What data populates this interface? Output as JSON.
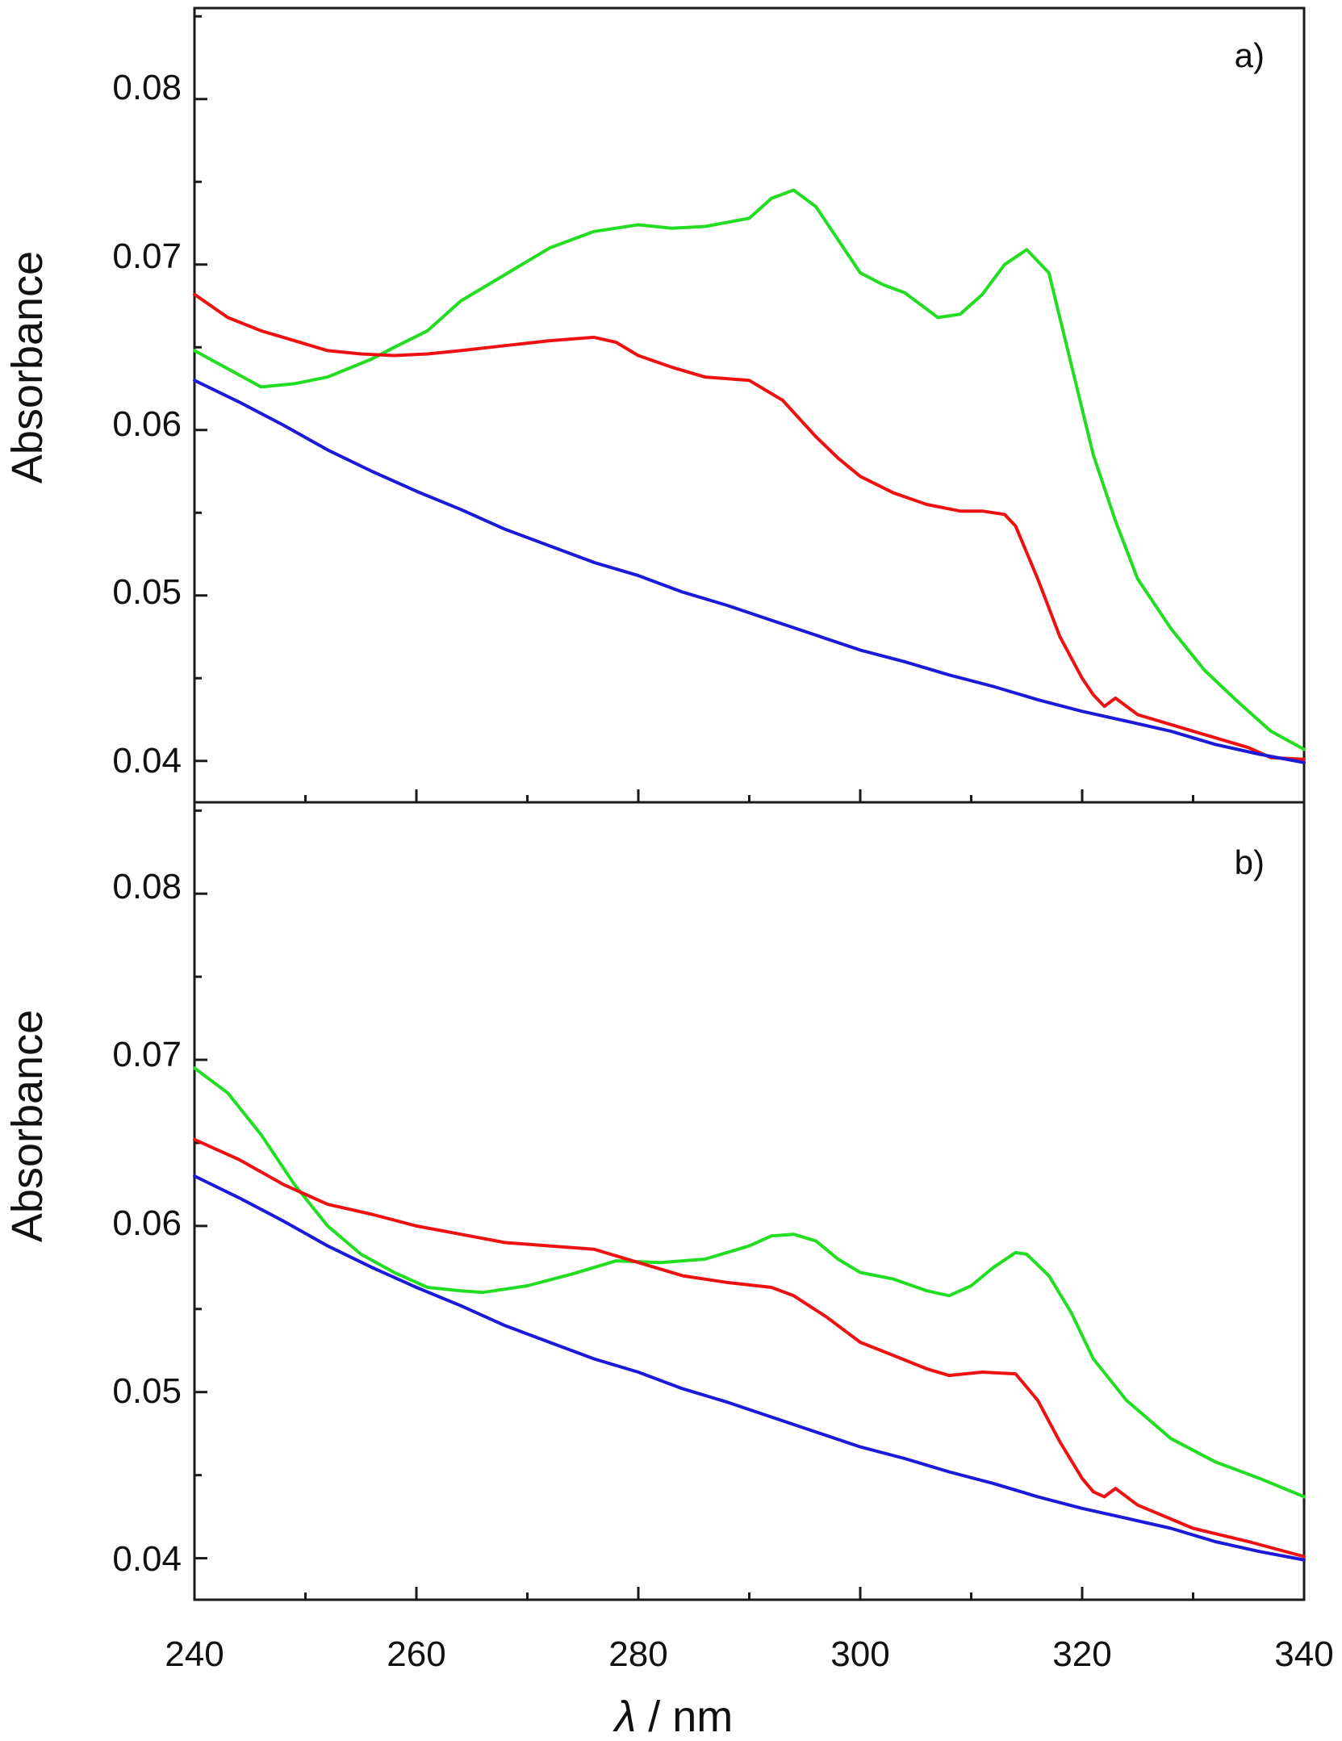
{
  "chart_data": [
    {
      "type": "line",
      "panel_label": "a)",
      "xlabel_symbol": "λ",
      "xlabel_rest": " / nm",
      "ylabel": "Absorbance",
      "xlim": [
        240,
        340
      ],
      "ylim": [
        0.0375,
        0.0855
      ],
      "xticks": [
        240,
        260,
        280,
        300,
        320,
        340
      ],
      "yticks": [
        {
          "value": 0.04,
          "label": "0.04"
        },
        {
          "value": 0.05,
          "label": "0.05"
        },
        {
          "value": 0.06,
          "label": "0.06"
        },
        {
          "value": 0.07,
          "label": "0.07"
        },
        {
          "value": 0.08,
          "label": "0.08"
        }
      ],
      "series": [
        {
          "name": "green",
          "color": "#22dd22",
          "x": [
            240,
            243,
            246,
            249,
            252,
            256,
            258,
            261,
            264,
            268,
            272,
            276,
            280,
            283,
            286,
            290,
            292,
            294,
            296,
            298,
            300,
            302,
            304,
            306,
            307,
            309,
            311,
            313,
            315,
            317,
            319,
            321,
            323,
            325,
            328,
            331,
            334,
            337,
            340
          ],
          "y": [
            0.0648,
            0.0637,
            0.0626,
            0.0628,
            0.0632,
            0.0643,
            0.065,
            0.066,
            0.0678,
            0.0694,
            0.071,
            0.072,
            0.0724,
            0.0722,
            0.0723,
            0.0728,
            0.074,
            0.0745,
            0.0735,
            0.0715,
            0.0695,
            0.0688,
            0.0683,
            0.0673,
            0.0668,
            0.067,
            0.0682,
            0.07,
            0.0709,
            0.0695,
            0.064,
            0.0585,
            0.0545,
            0.051,
            0.048,
            0.0455,
            0.0436,
            0.0418,
            0.0407
          ]
        },
        {
          "name": "red",
          "color": "#ee1111",
          "x": [
            240,
            243,
            246,
            249,
            252,
            255,
            258,
            261,
            264,
            268,
            272,
            276,
            278,
            280,
            283,
            286,
            290,
            293,
            296,
            298,
            300,
            303,
            306,
            309,
            311,
            313,
            314,
            316,
            318,
            320,
            321,
            322,
            323,
            325,
            330,
            335,
            337,
            340
          ],
          "y": [
            0.0682,
            0.0668,
            0.066,
            0.0654,
            0.0648,
            0.0646,
            0.0645,
            0.0646,
            0.0648,
            0.0651,
            0.0654,
            0.0656,
            0.0653,
            0.0645,
            0.0638,
            0.0632,
            0.063,
            0.0618,
            0.0596,
            0.0583,
            0.0572,
            0.0562,
            0.0555,
            0.0551,
            0.0551,
            0.0549,
            0.0542,
            0.051,
            0.0475,
            0.045,
            0.044,
            0.0433,
            0.0438,
            0.0428,
            0.0418,
            0.0408,
            0.0402,
            0.0401
          ]
        },
        {
          "name": "blue",
          "color": "#1a1ad8",
          "x": [
            240,
            244,
            248,
            252,
            256,
            260,
            264,
            268,
            272,
            276,
            280,
            284,
            288,
            292,
            296,
            300,
            304,
            308,
            312,
            316,
            320,
            324,
            328,
            332,
            336,
            340
          ],
          "y": [
            0.063,
            0.0617,
            0.0603,
            0.0588,
            0.0575,
            0.0563,
            0.0552,
            0.054,
            0.053,
            0.052,
            0.0512,
            0.0502,
            0.0494,
            0.0485,
            0.0476,
            0.0467,
            0.046,
            0.0452,
            0.0445,
            0.0437,
            0.043,
            0.0424,
            0.0418,
            0.041,
            0.0404,
            0.0399
          ]
        }
      ]
    },
    {
      "type": "line",
      "panel_label": "b)",
      "xlabel_symbol": "λ",
      "xlabel_rest": " / nm",
      "ylabel": "Absorbance",
      "xlim": [
        240,
        340
      ],
      "ylim": [
        0.0375,
        0.0855
      ],
      "xticks": [
        240,
        260,
        280,
        300,
        320,
        340
      ],
      "xtick_labels": [
        "240",
        "260",
        "280",
        "300",
        "320",
        "340"
      ],
      "yticks": [
        {
          "value": 0.04,
          "label": "0.04"
        },
        {
          "value": 0.05,
          "label": "0.05"
        },
        {
          "value": 0.06,
          "label": "0.06"
        },
        {
          "value": 0.07,
          "label": "0.07"
        },
        {
          "value": 0.08,
          "label": "0.08"
        }
      ],
      "series": [
        {
          "name": "green",
          "color": "#22dd22",
          "x": [
            240,
            243,
            246,
            249,
            252,
            255,
            258,
            261,
            264,
            266,
            270,
            274,
            278,
            282,
            286,
            290,
            292,
            294,
            296,
            298,
            300,
            303,
            306,
            308,
            310,
            312,
            314,
            315,
            317,
            319,
            321,
            324,
            328,
            332,
            336,
            340
          ],
          "y": [
            0.0695,
            0.068,
            0.0655,
            0.0625,
            0.06,
            0.0583,
            0.0572,
            0.0563,
            0.0561,
            0.056,
            0.0564,
            0.0571,
            0.0579,
            0.0578,
            0.058,
            0.0588,
            0.0594,
            0.0595,
            0.0591,
            0.058,
            0.0572,
            0.0568,
            0.0561,
            0.0558,
            0.0564,
            0.0575,
            0.0584,
            0.0583,
            0.057,
            0.0548,
            0.052,
            0.0495,
            0.0472,
            0.0458,
            0.0448,
            0.0437
          ]
        },
        {
          "name": "red",
          "color": "#ee1111",
          "x": [
            240,
            244,
            248,
            252,
            256,
            260,
            264,
            268,
            272,
            276,
            280,
            284,
            288,
            292,
            294,
            297,
            300,
            303,
            306,
            308,
            311,
            314,
            316,
            318,
            320,
            321,
            322,
            323,
            325,
            330,
            335,
            340
          ],
          "y": [
            0.0652,
            0.064,
            0.0625,
            0.0613,
            0.0607,
            0.06,
            0.0595,
            0.059,
            0.0588,
            0.0586,
            0.0578,
            0.057,
            0.0566,
            0.0563,
            0.0558,
            0.0545,
            0.053,
            0.0522,
            0.0514,
            0.051,
            0.0512,
            0.0511,
            0.0495,
            0.047,
            0.0448,
            0.044,
            0.0437,
            0.0442,
            0.0432,
            0.0418,
            0.041,
            0.0401
          ]
        },
        {
          "name": "blue",
          "color": "#1a1ad8",
          "x": [
            240,
            244,
            248,
            252,
            256,
            260,
            264,
            268,
            272,
            276,
            280,
            284,
            288,
            292,
            296,
            300,
            304,
            308,
            312,
            316,
            320,
            324,
            328,
            332,
            336,
            340
          ],
          "y": [
            0.063,
            0.0617,
            0.0603,
            0.0588,
            0.0575,
            0.0563,
            0.0552,
            0.054,
            0.053,
            0.052,
            0.0512,
            0.0502,
            0.0494,
            0.0485,
            0.0476,
            0.0467,
            0.046,
            0.0452,
            0.0445,
            0.0437,
            0.043,
            0.0424,
            0.0418,
            0.041,
            0.0404,
            0.0399
          ]
        }
      ]
    }
  ]
}
